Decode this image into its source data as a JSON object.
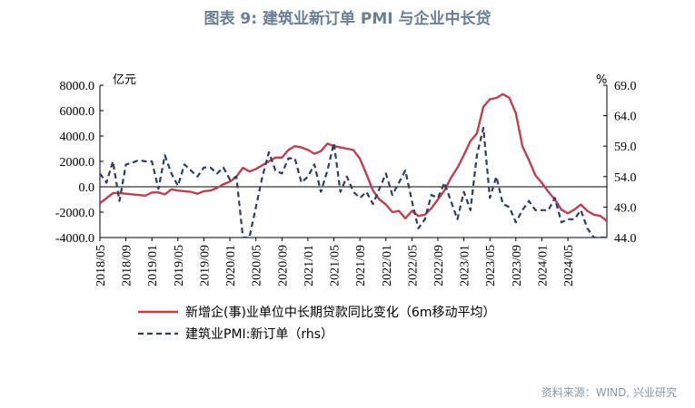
{
  "title": "图表 9:  建筑业新订单 PMI 与企业中长贷",
  "source": "资料来源：WIND, 兴业研究",
  "colors": {
    "loan": "#c0404f",
    "pmi": "#2e3e5c"
  },
  "chart_data": {
    "type": "line",
    "left_axis": {
      "unit": "亿元",
      "range": [
        -4000,
        8000
      ],
      "ticks": [
        "8000.0",
        "6000.0",
        "4000.0",
        "2000.0",
        "0.0",
        "-2000.0",
        "-4000.0"
      ]
    },
    "right_axis": {
      "unit": "%",
      "range": [
        44,
        69
      ],
      "ticks": [
        "69.0",
        "64.0",
        "59.0",
        "54.0",
        "49.0",
        "44.0"
      ]
    },
    "x_labels": [
      "2018/05",
      "2018/09",
      "2019/01",
      "2019/05",
      "2019/09",
      "2020/01",
      "2020/05",
      "2020/09",
      "2021/01",
      "2021/05",
      "2021/09",
      "2022/01",
      "2022/05",
      "2022/09",
      "2023/01",
      "2023/05",
      "2023/09",
      "2024/01",
      "2024/05"
    ],
    "legend_position": "bottom",
    "series": [
      {
        "name": "新增企(事)业单位中长期贷款同比变化（6m移动平均）",
        "axis": "left",
        "values": [
          -1300,
          -900,
          -500,
          -500,
          -550,
          -600,
          -650,
          -700,
          -450,
          -450,
          -600,
          -200,
          -300,
          -350,
          -400,
          -550,
          -350,
          -300,
          -100,
          200,
          400,
          800,
          1500,
          1200,
          1400,
          1700,
          2000,
          2300,
          2300,
          2900,
          3200,
          3100,
          2900,
          2600,
          2800,
          3400,
          3200,
          3100,
          3000,
          2900,
          2200,
          1000,
          -300,
          -1000,
          -1400,
          -2000,
          -1900,
          -2500,
          -1900,
          -2300,
          -2200,
          -1700,
          -1000,
          -300,
          700,
          1500,
          2500,
          3600,
          4200,
          6300,
          6900,
          7000,
          7300,
          7000,
          5800,
          3200,
          2100,
          900,
          300,
          -400,
          -1000,
          -1800,
          -2100,
          -1800,
          -1400,
          -1900,
          -2200,
          -2300,
          -2700
        ]
      },
      {
        "name": "建筑业PMI:新订单（rhs）",
        "axis": "right",
        "values": [
          54.5,
          53,
          56.5,
          50,
          56,
          56.3,
          56.7,
          56.5,
          56.5,
          52,
          57.5,
          54.5,
          52.5,
          56,
          55,
          54,
          55.5,
          55.5,
          54.5,
          55.5,
          53.5,
          54,
          44,
          44,
          49,
          54,
          58,
          55,
          54.5,
          57,
          57,
          53,
          54,
          56,
          51.5,
          55,
          59.5,
          51.5,
          54,
          51.5,
          50.5,
          51.5,
          49.5,
          52,
          54.5,
          51,
          53,
          55,
          50,
          45.5,
          47,
          51,
          50.5,
          53,
          50,
          47,
          51.5,
          48.5,
          57.5,
          62,
          50.5,
          54,
          49.5,
          49,
          46.5,
          48.5,
          50,
          48.5,
          48.5,
          48.5,
          50.5,
          46.5,
          47,
          47,
          48.5,
          45.5,
          44,
          44,
          44
        ]
      }
    ]
  }
}
